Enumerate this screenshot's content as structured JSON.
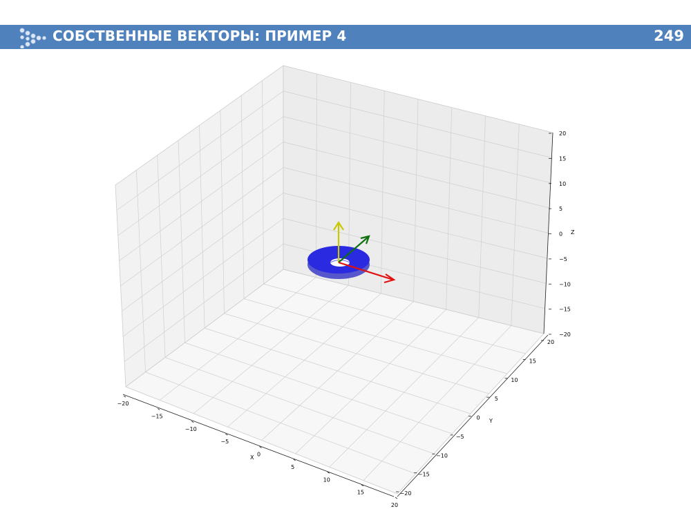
{
  "slide": {
    "title": "СОБСТВЕННЫЕ ВЕКТОРЫ: ПРИМЕР 4",
    "page_number": "249",
    "header_color": "#4f81bd"
  },
  "chart_data": {
    "type": "3d-surface-with-vectors",
    "xlabel": "X",
    "ylabel": "Y",
    "zlabel": "Z",
    "xlim": [
      -20,
      20
    ],
    "ylim": [
      -20,
      20
    ],
    "zlim": [
      -20,
      20
    ],
    "x_ticks": [
      "−20",
      "−15",
      "−10",
      "−5",
      "0",
      "5",
      "10",
      "15",
      "20"
    ],
    "y_ticks": [
      "−20",
      "−15",
      "−10",
      "−5",
      "0",
      "5",
      "10",
      "15",
      "20"
    ],
    "z_ticks": [
      "−20",
      "−15",
      "−10",
      "−5",
      "0",
      "5",
      "10",
      "15",
      "20"
    ],
    "grid": true,
    "surface": {
      "shape": "torus",
      "color": "#2020e0",
      "center": [
        0,
        0,
        0
      ]
    },
    "vectors": [
      {
        "color": "#e01010",
        "direction": "x"
      },
      {
        "color": "#107010",
        "direction": "y"
      },
      {
        "color": "#c8c800",
        "direction": "z"
      }
    ]
  }
}
